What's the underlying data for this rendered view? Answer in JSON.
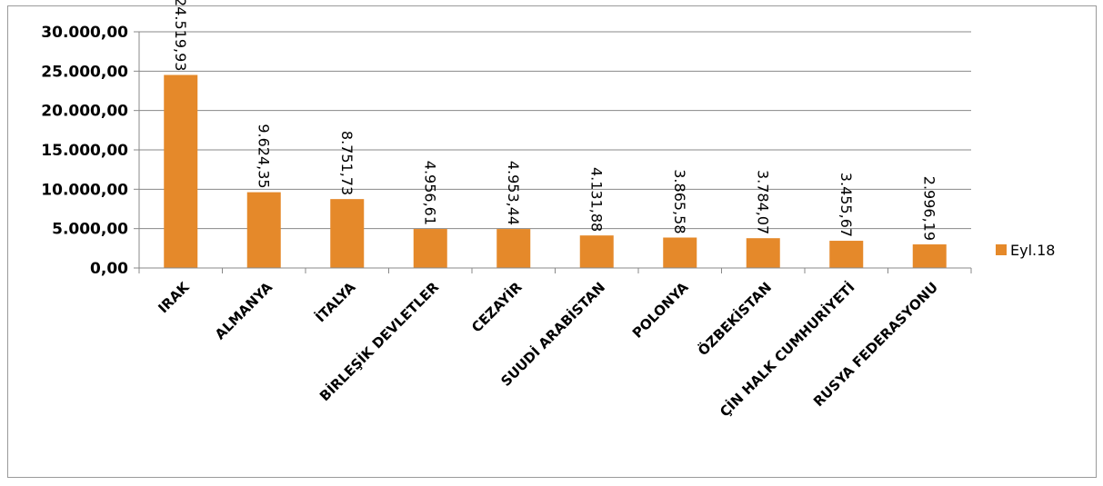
{
  "chart_data": {
    "type": "bar",
    "categories": [
      "IRAK",
      "ALMANYA",
      "İTALYA",
      "BİRLEŞİK DEVLETLER",
      "CEZAYİR",
      "SUUDİ ARABİSTAN",
      "POLONYA",
      "ÖZBEKİSTAN",
      "ÇİN HALK CUMHURİYETİ",
      "RUSYA FEDERASYONU"
    ],
    "series": [
      {
        "name": "Eyl.18",
        "values": [
          24519.93,
          9624.35,
          8751.73,
          4956.61,
          4953.44,
          4131.88,
          3865.58,
          3784.07,
          3455.67,
          2996.19
        ],
        "labels": [
          "24.519,93",
          "9.624,35",
          "8.751,73",
          "4.956,61",
          "4.953,44",
          "4.131,88",
          "3.865,58",
          "3.784,07",
          "3.455,67",
          "2.996,19"
        ],
        "color": "#E5892A"
      }
    ],
    "ylim": [
      0,
      30000
    ],
    "yticks": [
      0,
      5000,
      10000,
      15000,
      20000,
      25000,
      30000
    ],
    "ytick_labels": [
      "0,00",
      "5.000,00",
      "10.000,00",
      "15.000,00",
      "20.000,00",
      "25.000,00",
      "30.000,00"
    ],
    "grid": true,
    "gridline_color": "#888888",
    "legend_position": "right",
    "title": "",
    "xlabel": "",
    "ylabel": ""
  }
}
